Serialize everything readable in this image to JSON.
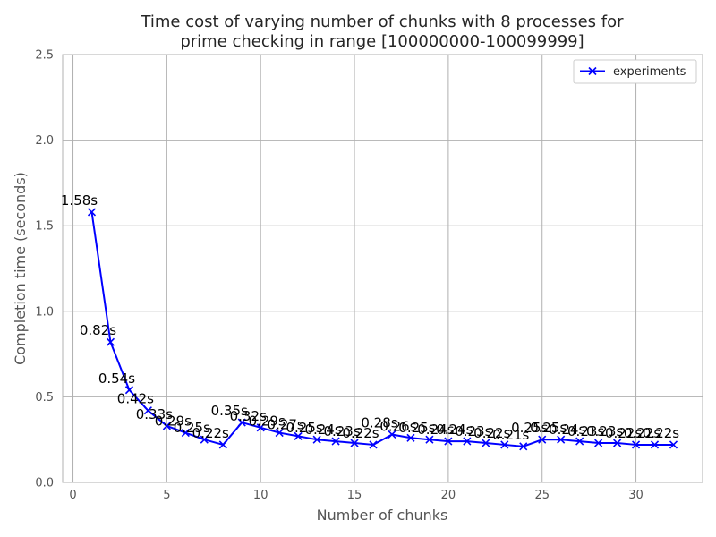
{
  "chart_data": {
    "type": "line",
    "title": "Time cost of varying number of chunks with 8 processes for prime checking in range [100000000-100099999]",
    "title_lines": [
      "Time cost of varying number of chunks with 8 processes for",
      "prime checking in range [100000000-100099999]"
    ],
    "xlabel": "Number of chunks",
    "ylabel": "Completion time (seconds)",
    "xlim": [
      -0.55,
      33.55
    ],
    "ylim": [
      0,
      2.5
    ],
    "x_ticks": [
      0,
      5,
      10,
      15,
      20,
      25,
      30
    ],
    "y_ticks": [
      0.0,
      0.5,
      1.0,
      1.5,
      2.0,
      2.5
    ],
    "y_tick_labels": [
      "0.0",
      "0.5",
      "1.0",
      "1.5",
      "2.0",
      "2.5"
    ],
    "grid": true,
    "legend_position": "top-right",
    "series": [
      {
        "name": "experiments",
        "color": "#0000ff",
        "marker": "x",
        "x": [
          1,
          2,
          3,
          4,
          5,
          6,
          7,
          8,
          9,
          10,
          11,
          12,
          13,
          14,
          15,
          16,
          17,
          18,
          19,
          20,
          21,
          22,
          23,
          24,
          25,
          26,
          27,
          28,
          29,
          30,
          31,
          32
        ],
        "values": [
          1.58,
          0.82,
          0.54,
          0.42,
          0.33,
          0.29,
          0.25,
          0.22,
          0.35,
          0.32,
          0.29,
          0.27,
          0.25,
          0.24,
          0.23,
          0.22,
          0.28,
          0.26,
          0.25,
          0.24,
          0.24,
          0.23,
          0.22,
          0.21,
          0.25,
          0.25,
          0.24,
          0.23,
          0.23,
          0.22,
          0.22,
          0.22
        ],
        "labels": [
          "1.58s",
          "0.82s",
          "0.54s",
          "0.42s",
          "0.33s",
          "0.29s",
          "0.25s",
          "0.22s",
          "0.35s",
          "0.32s",
          "0.29s",
          "0.27s",
          "0.25s",
          "0.24s",
          "0.23s",
          "0.22s",
          "0.28s",
          "0.26s",
          "0.25s",
          "0.24s",
          "0.24s",
          "0.23s",
          "0.22s",
          "0.21s",
          "0.25s",
          "0.25s",
          "0.24s",
          "0.23s",
          "0.23s",
          "0.22s",
          "0.22s",
          "0.22s"
        ]
      }
    ]
  }
}
